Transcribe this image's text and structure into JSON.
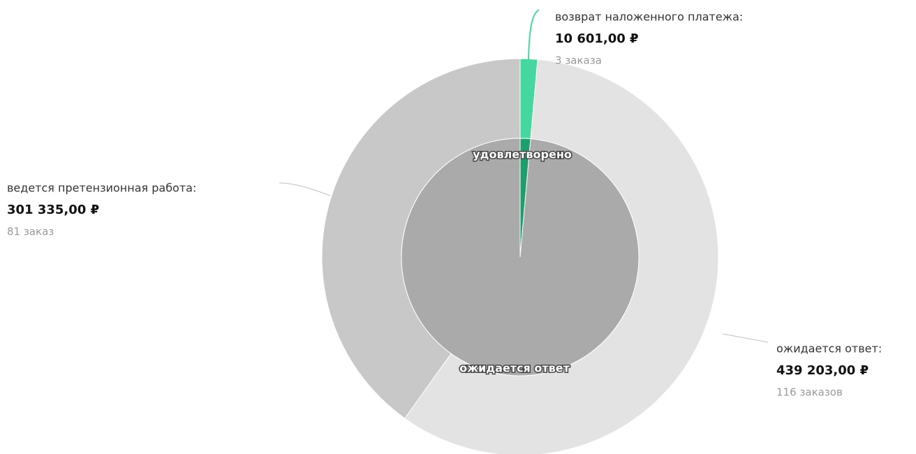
{
  "chart_data": {
    "type": "sunburst",
    "outer": {
      "categories": [
        "возврат наложенного платежа:",
        "ожидается ответ:",
        "ведется претензионная работа:"
      ],
      "values": [
        10601,
        439203,
        301335
      ],
      "value_labels": [
        "10 601,00 ₽",
        "439 203,00 ₽",
        "301 335,00 ₽"
      ],
      "counts": [
        "3 заказа",
        "116 заказов",
        "81 заказ"
      ],
      "colors": [
        "#46d6a0",
        "#e3e3e3",
        "#c8c8c8"
      ]
    },
    "inner": {
      "categories": [
        "удовлетворено",
        "ожидается ответ"
      ],
      "values": [
        10601,
        740538
      ],
      "colors": [
        "#1f9e6b",
        "#aaaaaa"
      ]
    }
  }
}
